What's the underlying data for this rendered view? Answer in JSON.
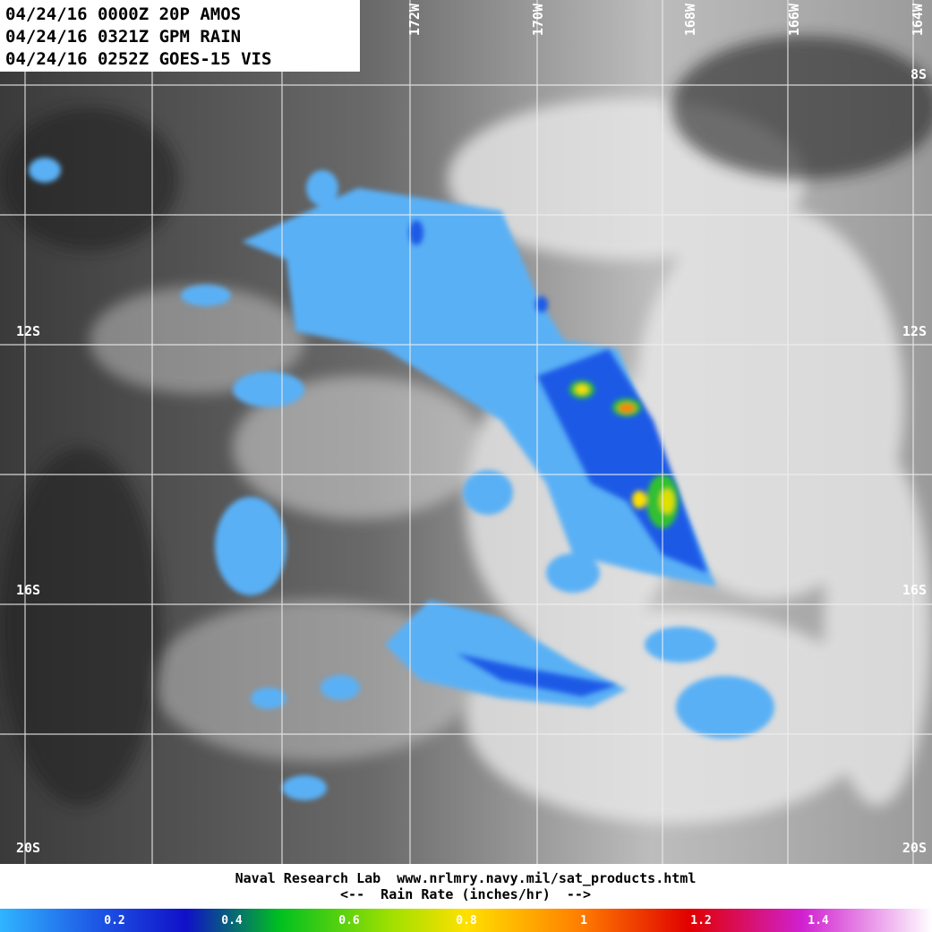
{
  "header": {
    "lines": [
      "04/24/16 0000Z 20P AMOS",
      "04/24/16 0321Z GPM RAIN",
      "04/24/16 0252Z GOES-15 VIS"
    ]
  },
  "grid": {
    "latitude_labels": [
      "8S",
      "12S",
      "16S",
      "20S"
    ],
    "longitude_labels": [
      "172W",
      "170W",
      "168W",
      "166W",
      "164W"
    ]
  },
  "footer": {
    "credit": "Naval Research Lab  www.nrlmry.navy.mil/sat_products.html",
    "caption": "<--  Rain Rate (inches/hr)  -->"
  },
  "colorbar": {
    "ticks": [
      0.2,
      0.4,
      0.6,
      0.8,
      1,
      1.2,
      1.4
    ]
  }
}
